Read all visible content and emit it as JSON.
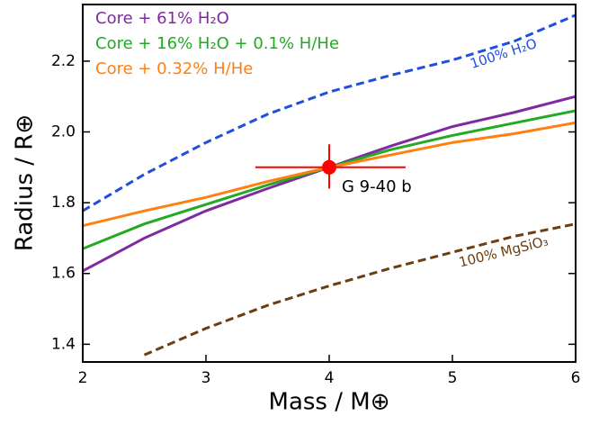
{
  "chart_data": {
    "type": "line",
    "xlabel": "Mass / M⊕",
    "ylabel": "Radius / R⊕",
    "x": [
      2,
      2.5,
      3,
      3.5,
      4,
      4.5,
      5,
      5.5,
      6
    ],
    "xlim": [
      2,
      6
    ],
    "xticks": [
      2,
      3,
      4,
      5,
      6
    ],
    "ylim": [
      1.35,
      2.36
    ],
    "yticks": [
      1.4,
      1.6,
      1.8,
      {
        "value": 2.0,
        "label": "2.0"
      },
      2.2
    ],
    "legend": "upper left",
    "series": [
      {
        "name": "Core + 61% H₂O",
        "color": "#7f2aa0",
        "values": [
          1.607,
          1.7,
          1.777,
          1.84,
          1.9,
          1.96,
          2.015,
          2.055,
          2.1
        ]
      },
      {
        "name": "Core + 16% H₂O + 0.1% H/He",
        "color": "#22aa22",
        "values": [
          1.67,
          1.74,
          1.795,
          1.85,
          1.9,
          1.95,
          1.99,
          2.025,
          2.06
        ]
      },
      {
        "name": "Core + 0.32% H/He",
        "color": "#ff8010",
        "values": [
          1.735,
          1.777,
          1.815,
          1.86,
          1.9,
          1.935,
          1.97,
          1.995,
          2.026
        ]
      }
    ],
    "reference_curves": [
      {
        "label": "100% H₂O",
        "color": "#1f4fdd",
        "values": [
          1.777,
          1.88,
          1.97,
          2.05,
          2.113,
          2.16,
          2.203,
          2.256,
          2.33
        ]
      },
      {
        "label": "100% MgSiO₃",
        "color": "#6b3d10",
        "values": [
          null,
          1.37,
          1.445,
          1.51,
          1.565,
          1.615,
          1.66,
          1.705,
          1.74
        ]
      }
    ],
    "point": {
      "name": "G 9-40 b",
      "color": "#ff0000",
      "x": 4,
      "y": 1.9,
      "xerr": [
        0.6,
        0.62
      ],
      "yerr": [
        0.06,
        0.065
      ]
    }
  }
}
